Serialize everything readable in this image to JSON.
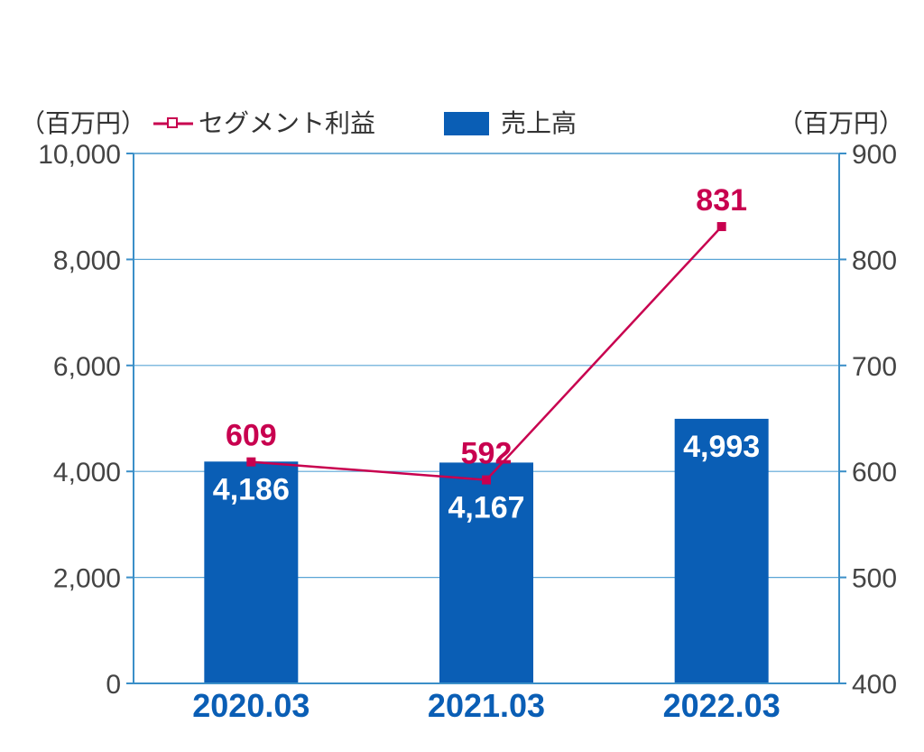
{
  "chart_data": {
    "type": "bar",
    "categories": [
      "2020.03",
      "2021.03",
      "2022.03"
    ],
    "series": [
      {
        "name": "売上高",
        "type": "bar",
        "axis": "left",
        "values": [
          4186,
          4167,
          4993
        ],
        "labels": [
          "4,186",
          "4,167",
          "4,993"
        ]
      },
      {
        "name": "セグメント利益",
        "type": "line",
        "axis": "right",
        "values": [
          609,
          592,
          831
        ],
        "labels": [
          "609",
          "592",
          "831"
        ]
      }
    ],
    "left_axis": {
      "unit": "（百万円）",
      "ylim": [
        0,
        10000
      ],
      "ticks": [
        0,
        2000,
        4000,
        6000,
        8000,
        10000
      ],
      "tick_labels": [
        "0",
        "2,000",
        "4,000",
        "6,000",
        "8,000",
        "10,000"
      ]
    },
    "right_axis": {
      "unit": "（百万円）",
      "ylim": [
        400,
        900
      ],
      "ticks": [
        400,
        500,
        600,
        700,
        800,
        900
      ],
      "tick_labels": [
        "400",
        "500",
        "600",
        "700",
        "800",
        "900"
      ]
    },
    "legend": {
      "placement": "top",
      "items": [
        "セグメント利益",
        "売上高"
      ]
    },
    "grid": true,
    "colors": {
      "bar": "#0a5eb5",
      "line": "#c8004f",
      "grid": "#5aa6d6",
      "axis": "#3b8fc8",
      "category_text": "#0a5eb5"
    }
  }
}
